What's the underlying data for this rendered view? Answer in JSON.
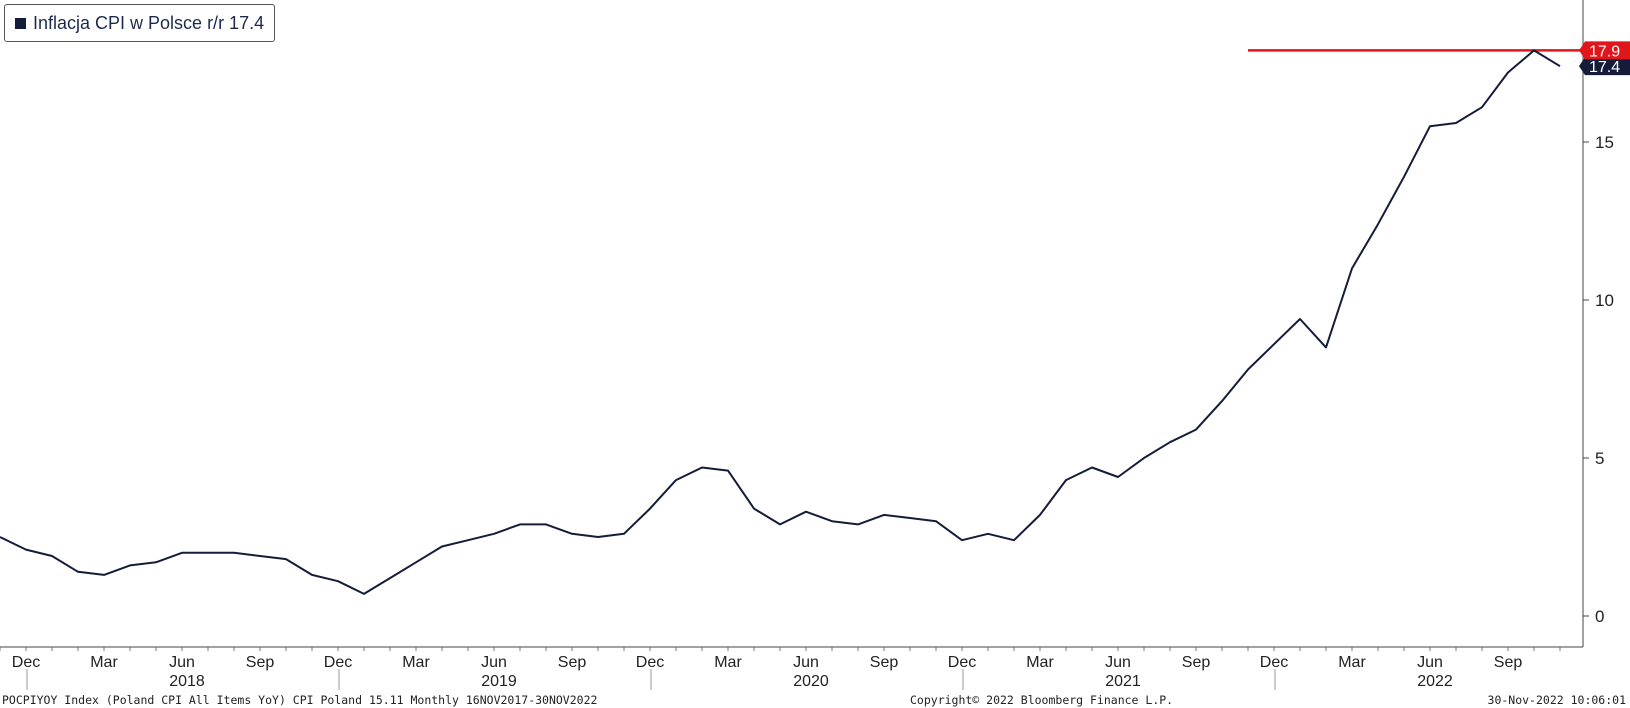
{
  "legend": {
    "label": "Inflacja CPI w Polsce r/r 17.4",
    "swatch_color": "#141c3a"
  },
  "footer": {
    "left": "POCPIYOY Index (Poland CPI All Items YoY) CPI Poland 15.11  Monthly 16NOV2017-30NOV2022",
    "center": "Copyright© 2022 Bloomberg Finance L.P.",
    "right": "30-Nov-2022 10:06:01"
  },
  "chart_data": {
    "type": "line",
    "ylim": [
      -1,
      19.5
    ],
    "y_ticks": [
      0,
      5,
      10,
      15
    ],
    "y_tick_labels": [
      "0",
      "5",
      "10",
      "15"
    ],
    "x_months": [
      "Nov 2017",
      "Dec 2017",
      "Jan 2018",
      "Feb 2018",
      "Mar 2018",
      "Apr 2018",
      "May 2018",
      "Jun 2018",
      "Jul 2018",
      "Aug 2018",
      "Sep 2018",
      "Oct 2018",
      "Nov 2018",
      "Dec 2018",
      "Jan 2019",
      "Feb 2019",
      "Mar 2019",
      "Apr 2019",
      "May 2019",
      "Jun 2019",
      "Jul 2019",
      "Aug 2019",
      "Sep 2019",
      "Oct 2019",
      "Nov 2019",
      "Dec 2019",
      "Jan 2020",
      "Feb 2020",
      "Mar 2020",
      "Apr 2020",
      "May 2020",
      "Jun 2020",
      "Jul 2020",
      "Aug 2020",
      "Sep 2020",
      "Oct 2020",
      "Nov 2020",
      "Dec 2020",
      "Jan 2021",
      "Feb 2021",
      "Mar 2021",
      "Apr 2021",
      "May 2021",
      "Jun 2021",
      "Jul 2021",
      "Aug 2021",
      "Sep 2021",
      "Oct 2021",
      "Nov 2021",
      "Dec 2021",
      "Jan 2022",
      "Feb 2022",
      "Mar 2022",
      "Apr 2022",
      "May 2022",
      "Jun 2022",
      "Jul 2022",
      "Aug 2022",
      "Sep 2022",
      "Oct 2022",
      "Nov 2022"
    ],
    "series": [
      {
        "name": "Inflacja CPI w Polsce r/r",
        "color": "#141c3a",
        "values": [
          2.5,
          2.1,
          1.9,
          1.4,
          1.3,
          1.6,
          1.7,
          2.0,
          2.0,
          2.0,
          1.9,
          1.8,
          1.3,
          1.1,
          0.7,
          1.2,
          1.7,
          2.2,
          2.4,
          2.6,
          2.9,
          2.9,
          2.6,
          2.5,
          2.6,
          3.4,
          4.3,
          4.7,
          4.6,
          3.4,
          2.9,
          3.3,
          3.0,
          2.9,
          3.2,
          3.1,
          3.0,
          2.4,
          2.6,
          2.4,
          3.2,
          4.3,
          4.7,
          4.4,
          5.0,
          5.5,
          5.9,
          6.8,
          7.8,
          8.6,
          9.4,
          8.5,
          11.0,
          12.4,
          13.9,
          15.5,
          15.6,
          16.1,
          17.2,
          17.9,
          17.4
        ]
      }
    ],
    "reference_line": {
      "value": 17.9,
      "label": "17.9",
      "color": "#e0161b"
    },
    "last_value_label": {
      "value": 17.4,
      "label": "17.4",
      "color": "#141c3a"
    },
    "x_tick_labels": [
      {
        "month_index": 1,
        "label": "Dec"
      },
      {
        "month_index": 4,
        "label": "Mar"
      },
      {
        "month_index": 7,
        "label": "Jun"
      },
      {
        "month_index": 10,
        "label": "Sep"
      },
      {
        "month_index": 13,
        "label": "Dec"
      },
      {
        "month_index": 16,
        "label": "Mar"
      },
      {
        "month_index": 19,
        "label": "Jun"
      },
      {
        "month_index": 22,
        "label": "Sep"
      },
      {
        "month_index": 25,
        "label": "Dec"
      },
      {
        "month_index": 28,
        "label": "Mar"
      },
      {
        "month_index": 31,
        "label": "Jun"
      },
      {
        "month_index": 34,
        "label": "Sep"
      },
      {
        "month_index": 37,
        "label": "Dec"
      },
      {
        "month_index": 40,
        "label": "Mar"
      },
      {
        "month_index": 43,
        "label": "Jun"
      },
      {
        "month_index": 46,
        "label": "Sep"
      },
      {
        "month_index": 49,
        "label": "Dec"
      },
      {
        "month_index": 52,
        "label": "Mar"
      },
      {
        "month_index": 55,
        "label": "Jun"
      },
      {
        "month_index": 58,
        "label": "Sep"
      }
    ],
    "year_labels": [
      {
        "month_index": 7,
        "label": "2018"
      },
      {
        "month_index": 19,
        "label": "2019"
      },
      {
        "month_index": 31,
        "label": "2020"
      },
      {
        "month_index": 43,
        "label": "2021"
      },
      {
        "month_index": 55,
        "label": "2022"
      }
    ],
    "year_separators": [
      1,
      13,
      25,
      37,
      49
    ],
    "grid": false
  }
}
